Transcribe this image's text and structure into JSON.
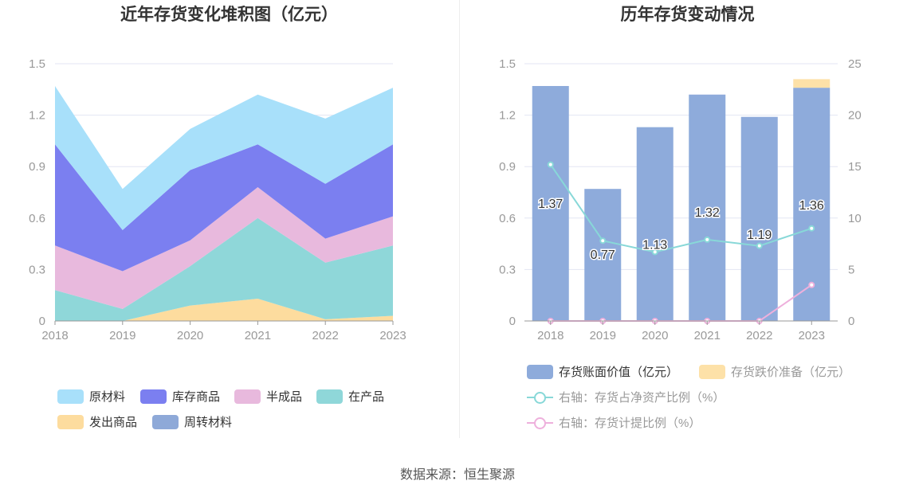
{
  "colors": {
    "yuancailiao": "#a8e0fa",
    "kucun": "#7b7ff0",
    "banchengpin": "#e8b9dd",
    "zaichanpin": "#8fd7d9",
    "fachu": "#fddc9e",
    "zhouzhuan": "#8ea9d8",
    "bar_value": "#8eabdb",
    "bar_reserve": "#fde1a8",
    "line_ratio": "#88d8d8",
    "line_provision": "#eeb0dc",
    "grid": "#e3e6f3",
    "axis_text": "#999999"
  },
  "source_text": "数据来源：恒生聚源",
  "chart_data": [
    {
      "type": "area",
      "stacked": true,
      "title": "近年存货变化堆积图（亿元）",
      "categories": [
        "2018",
        "2019",
        "2020",
        "2021",
        "2022",
        "2023"
      ],
      "ylim": [
        0,
        1.5
      ],
      "yticks": [
        "0",
        "0.3",
        "0.6",
        "0.9",
        "1.2",
        "1.5"
      ],
      "grid": true,
      "series": [
        {
          "name": "发出商品",
          "values": [
            0.0,
            0.0,
            0.09,
            0.13,
            0.01,
            0.03
          ],
          "color": "#fddc9e"
        },
        {
          "name": "在产品",
          "values": [
            0.18,
            0.07,
            0.23,
            0.47,
            0.33,
            0.41
          ],
          "color": "#8fd7d9"
        },
        {
          "name": "半成品",
          "values": [
            0.26,
            0.22,
            0.15,
            0.18,
            0.14,
            0.17
          ],
          "color": "#e8b9dd"
        },
        {
          "name": "库存商品",
          "values": [
            0.59,
            0.24,
            0.41,
            0.25,
            0.32,
            0.42
          ],
          "color": "#7b7ff0"
        },
        {
          "name": "原材料",
          "values": [
            0.34,
            0.24,
            0.24,
            0.29,
            0.38,
            0.33
          ],
          "color": "#a8e0fa"
        },
        {
          "name": "周转材料",
          "values": [
            0.0,
            0.0,
            0.0,
            0.0,
            0.0,
            0.0
          ],
          "color": "#8ea9d8"
        }
      ],
      "legend": {
        "position": "bottom",
        "items": [
          "原材料",
          "库存商品",
          "半成品",
          "在产品",
          "发出商品",
          "周转材料"
        ]
      }
    },
    {
      "type": "bar",
      "title": "历年存货变动情况",
      "categories": [
        "2018",
        "2019",
        "2020",
        "2021",
        "2022",
        "2023"
      ],
      "ylim": [
        0,
        1.5
      ],
      "yticks": [
        "0",
        "0.3",
        "0.6",
        "0.9",
        "1.2",
        "1.5"
      ],
      "y2lim": [
        0,
        25
      ],
      "y2ticks": [
        "0",
        "5",
        "10",
        "15",
        "20",
        "25"
      ],
      "grid": true,
      "series": [
        {
          "name": "存货账面价值（亿元）",
          "kind": "bar",
          "stack": "a",
          "axis": "left",
          "values": [
            1.37,
            0.77,
            1.13,
            1.32,
            1.19,
            1.36
          ],
          "labels": [
            "1.37",
            "0.77",
            "1.13",
            "1.32",
            "1.19",
            "1.36"
          ],
          "color": "#8eabdb"
        },
        {
          "name": "存货跌价准备（亿元）",
          "kind": "bar",
          "stack": "a",
          "axis": "left",
          "values": [
            0.0,
            0.0,
            0.0,
            0.0,
            0.0,
            0.05
          ],
          "color": "#fde1a8"
        },
        {
          "name": "右轴：存货占净资产比例（%）",
          "kind": "line",
          "axis": "right",
          "values": [
            15.2,
            7.8,
            6.7,
            7.9,
            7.3,
            9.0
          ],
          "color": "#88d8d8"
        },
        {
          "name": "右轴：存货计提比例（%）",
          "kind": "line",
          "axis": "right",
          "values": [
            0.0,
            0.0,
            0.0,
            0.0,
            0.0,
            3.5
          ],
          "color": "#eeb0dc"
        }
      ],
      "legend": {
        "position": "bottom"
      }
    }
  ]
}
